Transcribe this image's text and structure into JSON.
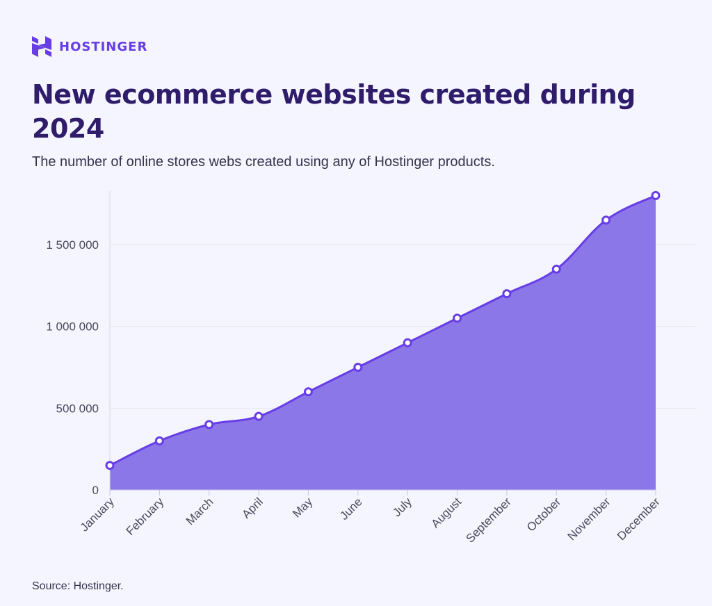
{
  "brand": {
    "name": "HOSTINGER",
    "color": "#673de6",
    "logo_icon": "hostinger-logo-icon"
  },
  "header": {
    "title": "New ecommerce websites created during 2024",
    "subtitle": "The number of online stores webs created using any of Hostinger products."
  },
  "footer": {
    "source": "Source: Hostinger."
  },
  "chart_data": {
    "type": "area",
    "title": "New ecommerce websites created during 2024",
    "subtitle": "The number of online stores webs created using any of Hostinger products.",
    "xlabel": "",
    "ylabel": "",
    "categories": [
      "January",
      "February",
      "March",
      "April",
      "May",
      "June",
      "July",
      "August",
      "September",
      "October",
      "November",
      "December"
    ],
    "values": [
      150000,
      300000,
      400000,
      450000,
      600000,
      750000,
      900000,
      1050000,
      1200000,
      1350000,
      1650000,
      1800000
    ],
    "ylim": [
      0,
      1800000
    ],
    "y_ticks": [
      0,
      500000,
      1000000,
      1500000
    ],
    "y_tick_labels": [
      "0",
      "500 000",
      "1 000 000",
      "1 500 000"
    ],
    "grid": true,
    "legend": "none",
    "colors": {
      "fill": "#8c77e8",
      "line": "#673de6",
      "marker_fill": "#ffffff"
    }
  }
}
